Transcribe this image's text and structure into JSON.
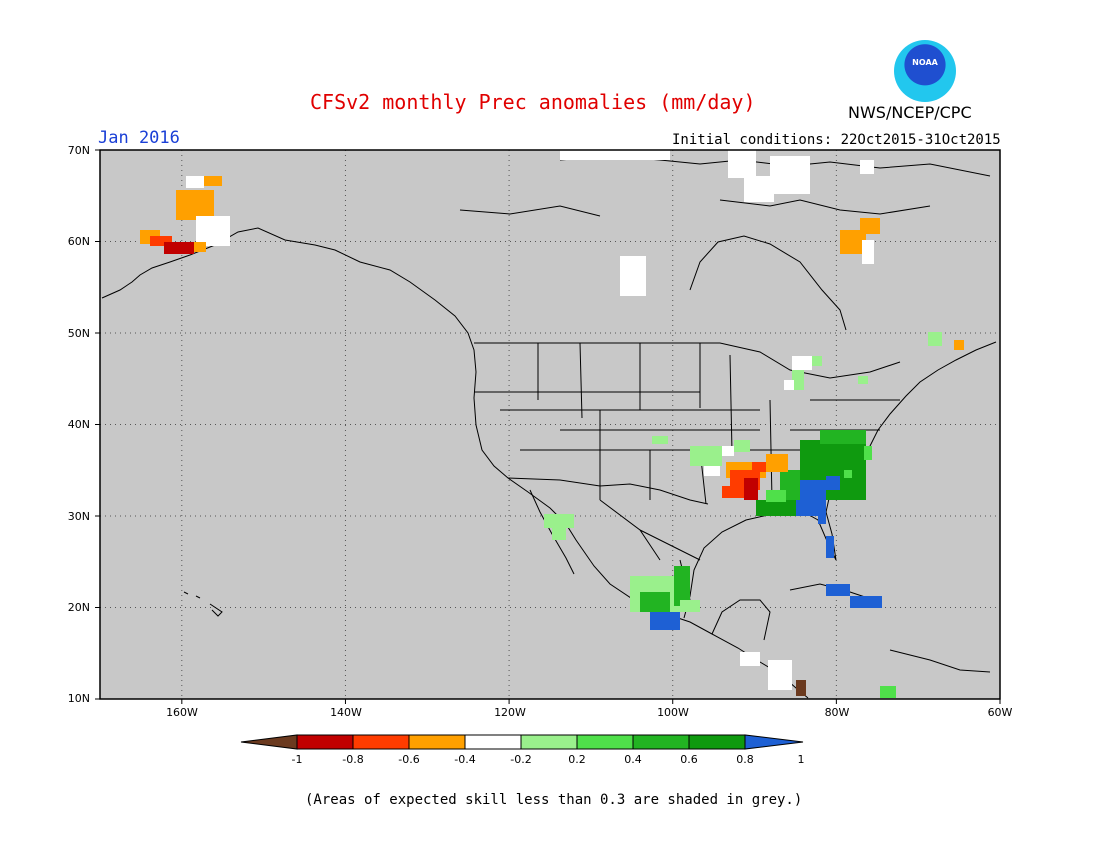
{
  "header": {
    "title": "CFSv2 monthly Prec anomalies (mm/day)",
    "agency": "NWS/NCEP/CPC",
    "logo_text": "NOAA",
    "valid_month": "Jan 2016",
    "initial_conditions": "Initial conditions: 22Oct2015-31Oct2015"
  },
  "map": {
    "lon_range": [
      -170,
      -60
    ],
    "lat_range": [
      10,
      70
    ],
    "lat_labels": [
      "70N",
      "60N",
      "50N",
      "40N",
      "30N",
      "20N",
      "10N"
    ],
    "lon_labels": [
      "160W",
      "140W",
      "120W",
      "100W",
      "80W",
      "60W"
    ],
    "background_color": "#c8c8c8",
    "grid": "dotted"
  },
  "colorbar": {
    "labels": [
      "-1",
      "-0.8",
      "-0.6",
      "-0.4",
      "-0.2",
      "0.2",
      "0.4",
      "0.6",
      "0.8",
      "1"
    ],
    "colors": [
      "#6b3a1f",
      "#c10000",
      "#ff3c00",
      "#ffa000",
      "#ffffff",
      "#9af08c",
      "#4fe04a",
      "#22b422",
      "#0f9a0f",
      "#1e60d4"
    ],
    "bins": [
      {
        "range": "< -1",
        "color": "#6b3a1f"
      },
      {
        "range": "-1 to -0.8",
        "color": "#c10000"
      },
      {
        "range": "-0.8 to -0.6",
        "color": "#c10000"
      },
      {
        "range": "-0.6 to -0.4",
        "color": "#ff3c00"
      },
      {
        "range": "-0.4 to -0.2",
        "color": "#ffa000"
      },
      {
        "range": "-0.2 to 0.2",
        "color": "#ffffff"
      },
      {
        "range": "0.2 to 0.4",
        "color": "#9af08c"
      },
      {
        "range": "0.4 to 0.6",
        "color": "#4fe04a"
      },
      {
        "range": "0.6 to 0.8",
        "color": "#22b422"
      },
      {
        "range": "0.8 to 1",
        "color": "#0f9a0f"
      },
      {
        "range": "> 1",
        "color": "#1e60d4"
      }
    ]
  },
  "anomaly_regions": [
    {
      "name": "Southeast US",
      "lon": [
        -90,
        -76
      ],
      "lat": [
        29,
        37
      ],
      "category": "0.8 to 1"
    },
    {
      "name": "Florida / Georgia coast",
      "lon": [
        -83,
        -80
      ],
      "lat": [
        26,
        32
      ],
      "category": "> 1"
    },
    {
      "name": "Lower Mississippi Valley",
      "lon": [
        -93,
        -86
      ],
      "lat": [
        31,
        35
      ],
      "category": "-0.6 to -0.4"
    },
    {
      "name": "Southern Mexico",
      "lon": [
        -105,
        -96
      ],
      "lat": [
        17,
        23
      ],
      "category": "0.4 to 0.6"
    },
    {
      "name": "Cuba",
      "lon": [
        -80,
        -75
      ],
      "lat": [
        20,
        23
      ],
      "category": "> 1"
    },
    {
      "name": "Southwest Alaska",
      "lon": [
        -165,
        -155
      ],
      "lat": [
        59,
        66
      ],
      "category": "-0.4 to -0.2"
    },
    {
      "name": "Northern Quebec",
      "lon": [
        -79,
        -76
      ],
      "lat": [
        57,
        61
      ],
      "category": "-0.4 to -0.2"
    }
  ],
  "footer": {
    "note": "(Areas of expected skill less than 0.3 are shaded in grey.)"
  }
}
